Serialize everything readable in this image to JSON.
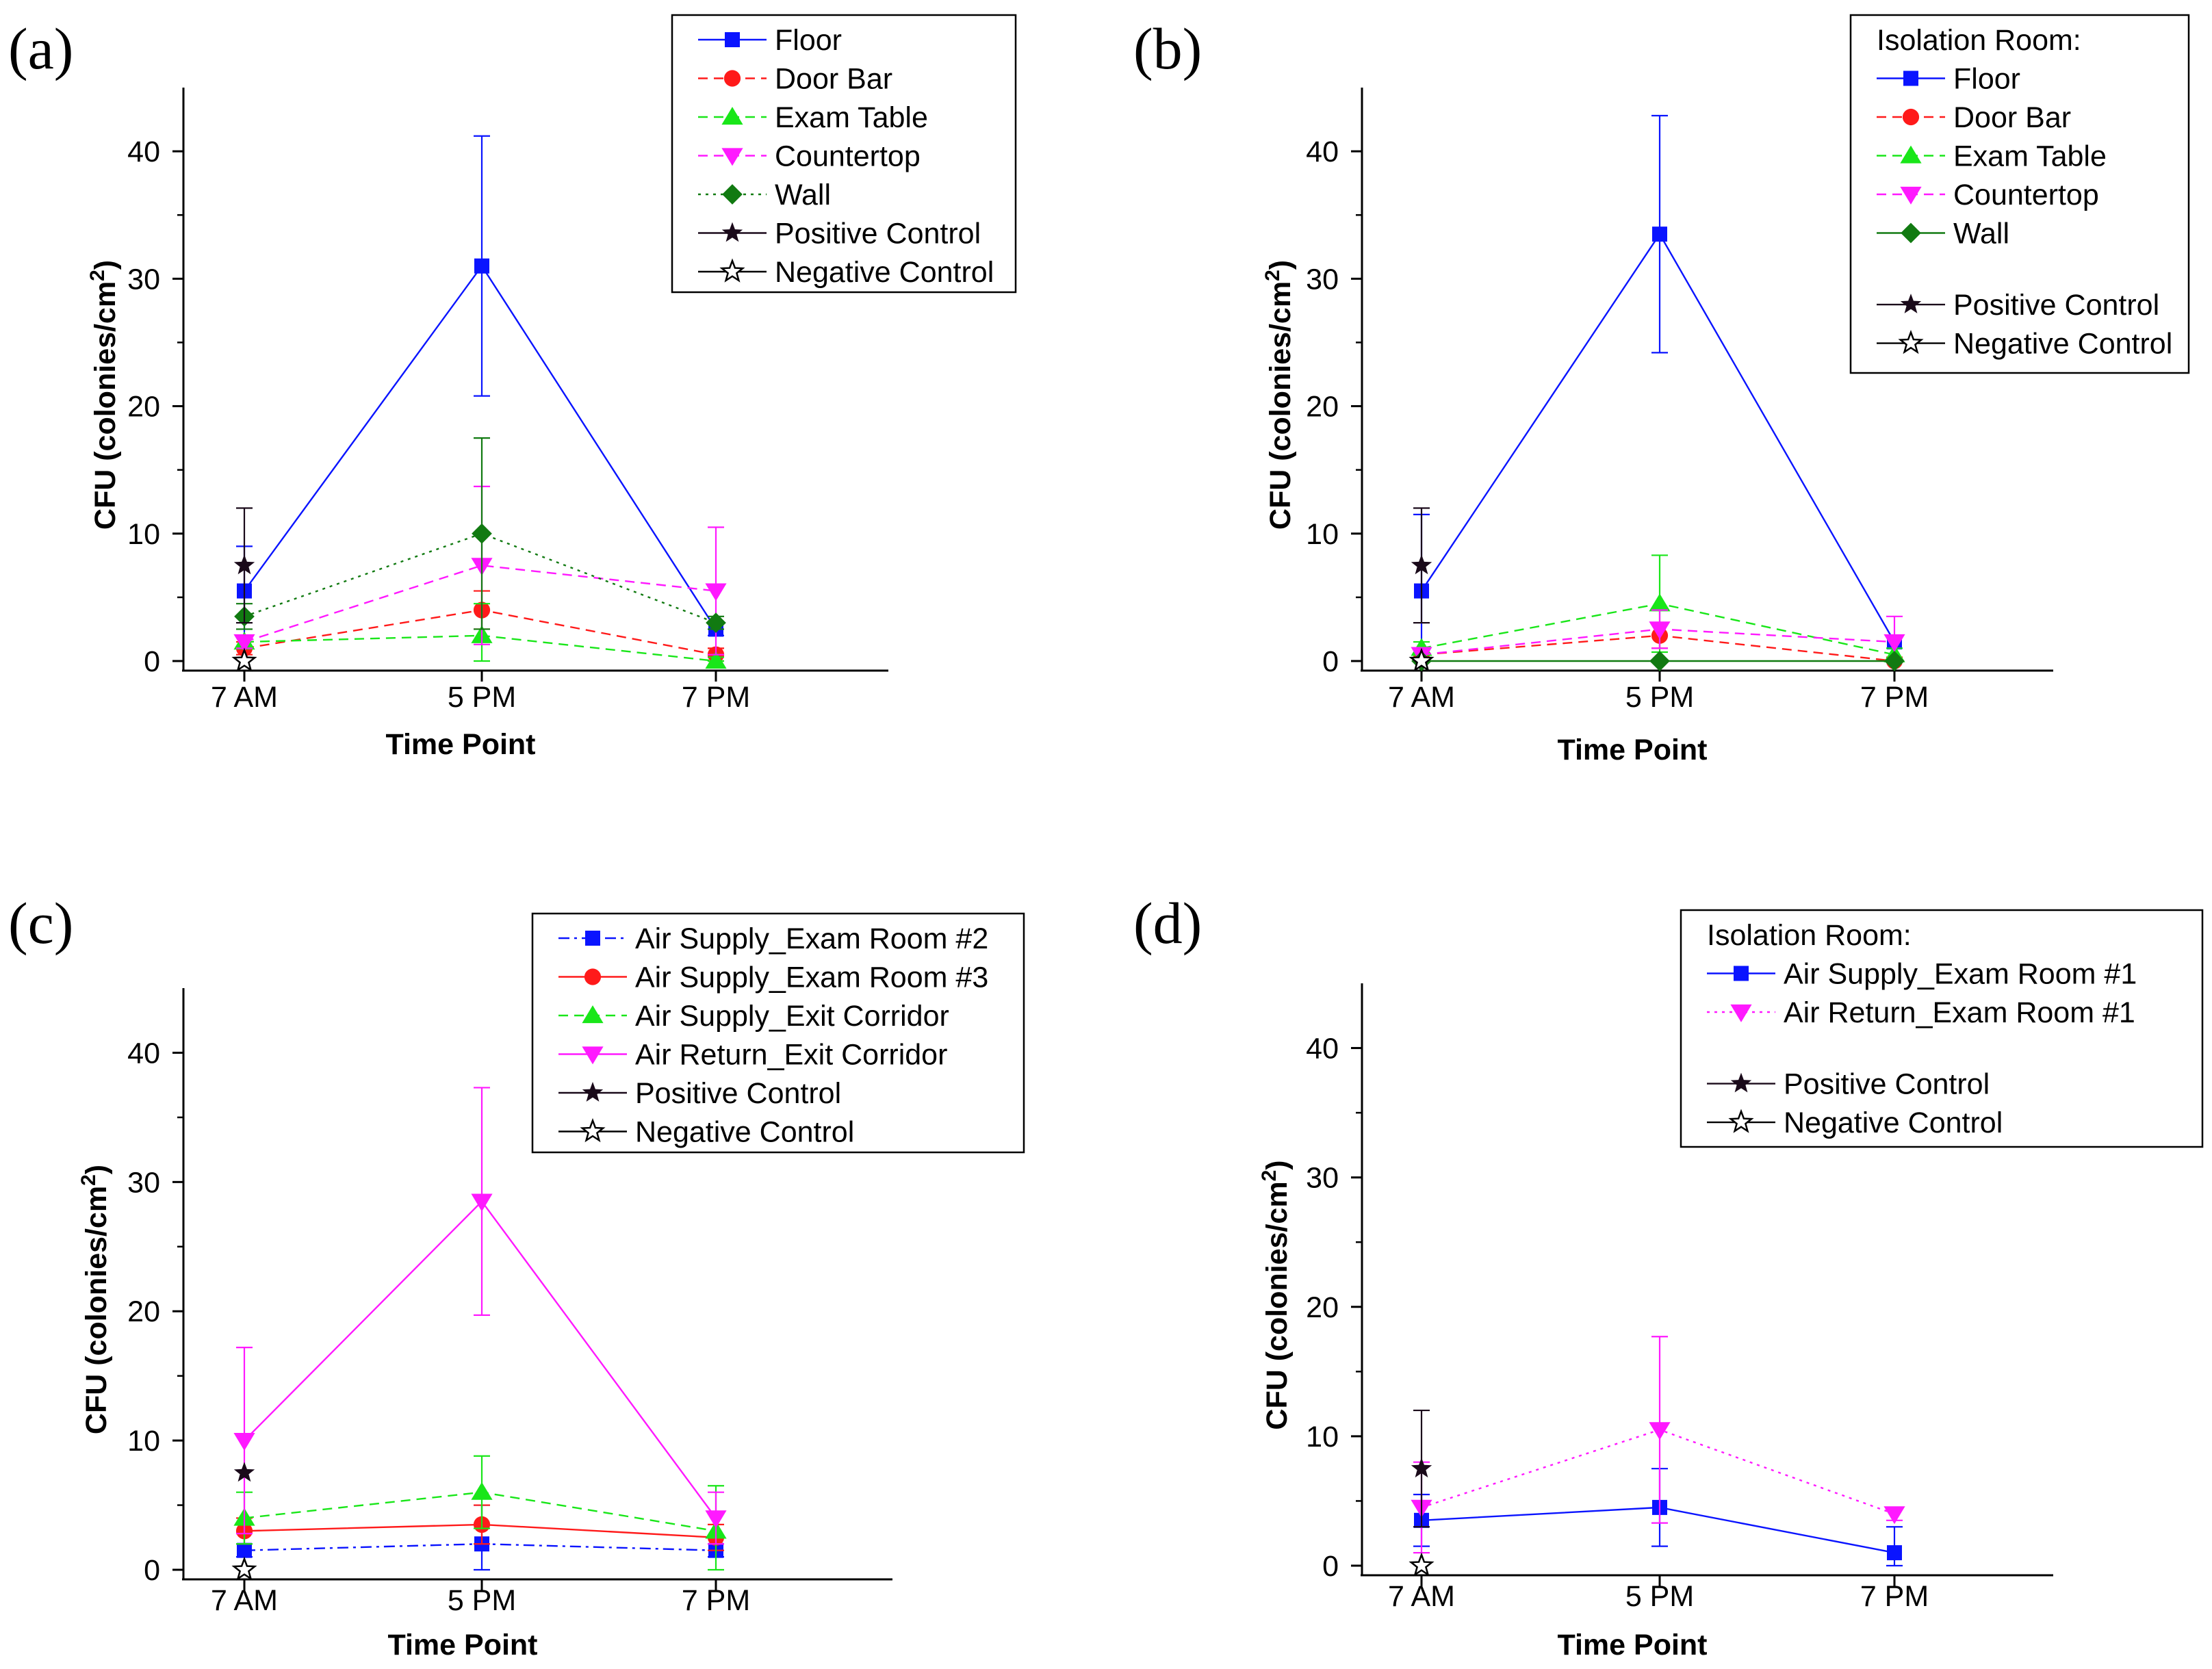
{
  "figure": {
    "panels": [
      "(a)",
      "(b)",
      "(c)",
      "(d)"
    ]
  },
  "chart_data": [
    {
      "type": "line",
      "panel": "(a)",
      "title": "",
      "xlabel": "Time Point",
      "ylabel": "CFU (colonies/cm2)",
      "ylabel_base": "CFU (colonies/cm",
      "ylabel_sup": "2",
      "ylabel_end": ")",
      "categories": [
        "7 AM",
        "5 PM",
        "7 PM"
      ],
      "ylim": [
        0,
        45
      ],
      "yticks": [
        0,
        10,
        20,
        30,
        40
      ],
      "legend_title": "",
      "legend_position": "top-right",
      "series": [
        {
          "name": "Floor",
          "color": "#0a14ff",
          "marker": "square",
          "dash": "none",
          "values": [
            5.5,
            31,
            2.5
          ],
          "errors": [
            3.5,
            10.2,
            0.5
          ]
        },
        {
          "name": "Door Bar",
          "color": "#ff1a1a",
          "marker": "circle",
          "dash": "dash",
          "values": [
            1,
            4,
            0.5
          ],
          "errors": [
            0.5,
            1.5,
            0.5
          ]
        },
        {
          "name": "Exam Table",
          "color": "#19e619",
          "marker": "triangle-up",
          "dash": "dash",
          "values": [
            1.5,
            2,
            0
          ],
          "errors": [
            0.5,
            2.5,
            0.3
          ]
        },
        {
          "name": "Countertop",
          "color": "#ff19ff",
          "marker": "triangle-down",
          "dash": "dash",
          "values": [
            1.5,
            7.5,
            5.5
          ],
          "errors": [
            0.5,
            6.2,
            5
          ]
        },
        {
          "name": "Wall",
          "color": "#117a11",
          "marker": "diamond",
          "dash": "dot",
          "values": [
            3.5,
            10,
            3
          ],
          "errors": [
            1,
            7.5,
            0.5
          ]
        },
        {
          "name": "Positive Control",
          "color": "#1a0a1a",
          "marker": "star",
          "dash": "none",
          "values": [
            7.5,
            null,
            null
          ],
          "errors": [
            4.5,
            null,
            null
          ]
        },
        {
          "name": "Negative Control",
          "color": "#000000",
          "marker": "star-open",
          "dash": "none",
          "values": [
            0,
            null,
            null
          ],
          "errors": [
            null,
            null,
            null
          ]
        }
      ]
    },
    {
      "type": "line",
      "panel": "(b)",
      "title": "",
      "xlabel": "Time Point",
      "ylabel": "CFU (colonies/cm2)",
      "ylabel_base": "CFU (colonies/cm",
      "ylabel_sup": "2",
      "ylabel_end": ")",
      "categories": [
        "7 AM",
        "5 PM",
        "7 PM"
      ],
      "ylim": [
        0,
        45
      ],
      "yticks": [
        0,
        10,
        20,
        30,
        40
      ],
      "legend_title": "Isolation Room:",
      "legend_position": "top-right",
      "series": [
        {
          "name": "Floor",
          "color": "#0a14ff",
          "marker": "square",
          "dash": "none",
          "values": [
            5.5,
            33.5,
            1.5
          ],
          "errors": [
            6,
            9.3,
            0.5
          ]
        },
        {
          "name": "Door Bar",
          "color": "#ff1a1a",
          "marker": "circle",
          "dash": "dash",
          "values": [
            0.5,
            2,
            0
          ],
          "errors": [
            0.5,
            1,
            0.3
          ]
        },
        {
          "name": "Exam Table",
          "color": "#19e619",
          "marker": "triangle-up",
          "dash": "dash",
          "values": [
            1,
            4.5,
            0.5
          ],
          "errors": [
            0.5,
            3.8,
            0.5
          ]
        },
        {
          "name": "Countertop",
          "color": "#ff19ff",
          "marker": "triangle-down",
          "dash": "dash",
          "values": [
            0.5,
            2.5,
            1.5
          ],
          "errors": [
            0.5,
            1.5,
            2
          ]
        },
        {
          "name": "Wall",
          "color": "#117a11",
          "marker": "diamond",
          "dash": "none",
          "values": [
            0,
            0,
            0
          ],
          "errors": [
            null,
            null,
            null
          ]
        },
        {
          "name": "Positive Control",
          "color": "#1a0a1a",
          "marker": "star",
          "dash": "none",
          "values": [
            7.5,
            null,
            null
          ],
          "errors": [
            4.5,
            null,
            null
          ]
        },
        {
          "name": "Negative Control",
          "color": "#000000",
          "marker": "star-open",
          "dash": "none",
          "values": [
            0,
            null,
            null
          ],
          "errors": [
            null,
            null,
            null
          ]
        }
      ]
    },
    {
      "type": "line",
      "panel": "(c)",
      "title": "",
      "xlabel": "Time Point",
      "ylabel": "CFU (colonies/cm2)",
      "ylabel_base": "CFU (colonies/cm",
      "ylabel_sup": "2",
      "ylabel_end": ")",
      "categories": [
        "7 AM",
        "5 PM",
        "7 PM"
      ],
      "ylim": [
        0,
        45
      ],
      "yticks": [
        0,
        10,
        20,
        30,
        40
      ],
      "legend_title": "",
      "legend_position": "top-right",
      "series": [
        {
          "name": "Air Supply_Exam Room #2",
          "color": "#0a14ff",
          "marker": "square",
          "dash": "dashdot",
          "values": [
            1.5,
            2,
            1.5
          ],
          "errors": [
            0.5,
            3,
            0.5
          ]
        },
        {
          "name": "Air Supply_Exam Room #3",
          "color": "#ff1a1a",
          "marker": "circle",
          "dash": "none",
          "values": [
            3,
            3.5,
            2.5
          ],
          "errors": [
            1,
            1.5,
            1
          ]
        },
        {
          "name": "Air Supply_Exit Corridor",
          "color": "#19e619",
          "marker": "triangle-up",
          "dash": "dash",
          "values": [
            4,
            6,
            3
          ],
          "errors": [
            2,
            2.8,
            3.5
          ]
        },
        {
          "name": "Air Return_Exit Corridor",
          "color": "#ff19ff",
          "marker": "triangle-down",
          "dash": "none",
          "values": [
            10,
            28.5,
            4
          ],
          "errors": [
            7.2,
            8.8,
            2
          ]
        },
        {
          "name": "Positive Control",
          "color": "#1a0a1a",
          "marker": "star",
          "dash": "none",
          "values": [
            7.5,
            null,
            null
          ],
          "errors": [
            null,
            null,
            null
          ]
        },
        {
          "name": "Negative Control",
          "color": "#000000",
          "marker": "star-open",
          "dash": "none",
          "values": [
            0,
            null,
            null
          ],
          "errors": [
            null,
            null,
            null
          ]
        }
      ]
    },
    {
      "type": "line",
      "panel": "(d)",
      "title": "",
      "xlabel": "Time Point",
      "ylabel": "CFU (colonies/cm2)",
      "ylabel_base": "CFU (colonies/cm",
      "ylabel_sup": "2",
      "ylabel_end": ")",
      "categories": [
        "7 AM",
        "5 PM",
        "7 PM"
      ],
      "ylim": [
        0,
        45
      ],
      "yticks": [
        0,
        10,
        20,
        30,
        40
      ],
      "legend_title": "Isolation Room:",
      "legend_position": "top-right",
      "series": [
        {
          "name": "Air Supply_Exam Room #1",
          "color": "#0a14ff",
          "marker": "square",
          "dash": "none",
          "values": [
            3.5,
            4.5,
            1
          ],
          "errors": [
            2,
            3,
            2
          ]
        },
        {
          "name": "Air Return_Exam Room #1",
          "color": "#ff19ff",
          "marker": "triangle-down",
          "dash": "dot",
          "values": [
            4.5,
            10.5,
            4
          ],
          "errors": [
            3.5,
            7.2,
            0.5
          ]
        },
        {
          "name": "Positive Control",
          "color": "#1a0a1a",
          "marker": "star",
          "dash": "none",
          "values": [
            7.5,
            null,
            null
          ],
          "errors": [
            4.5,
            null,
            null
          ]
        },
        {
          "name": "Negative Control",
          "color": "#000000",
          "marker": "star-open",
          "dash": "none",
          "values": [
            0,
            null,
            null
          ],
          "errors": [
            null,
            null,
            null
          ]
        }
      ]
    }
  ]
}
